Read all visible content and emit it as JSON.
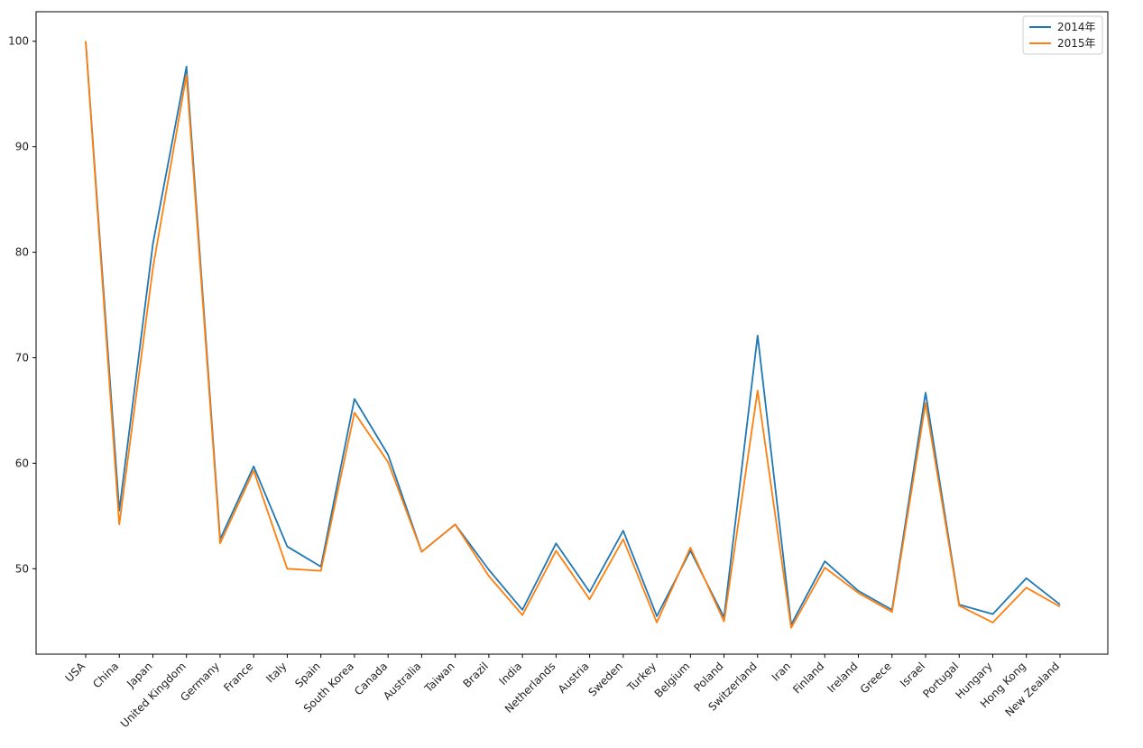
{
  "chart_data": {
    "type": "line",
    "categories": [
      "USA",
      "China",
      "Japan",
      "United Kingdom",
      "Germany",
      "France",
      "Italy",
      "Spain",
      "South Korea",
      "Canada",
      "Australia",
      "Taiwan",
      "Brazil",
      "India",
      "Netherlands",
      "Austria",
      "Sweden",
      "Turkey",
      "Belgium",
      "Poland",
      "Switzerland",
      "Iran",
      "Finland",
      "Ireland",
      "Greece",
      "Israel",
      "Portugal",
      "Hungary",
      "Hong Kong",
      "New Zealand"
    ],
    "series": [
      {
        "name": "2014年",
        "color": "#1f77b4",
        "values": [
          100,
          55.5,
          80.8,
          97.6,
          52.8,
          59.7,
          52.1,
          50.2,
          66.1,
          60.8,
          51.6,
          54.2,
          49.9,
          46.1,
          52.4,
          47.8,
          53.6,
          45.5,
          51.7,
          45.4,
          72.1,
          44.7,
          50.7,
          47.9,
          46.1,
          66.7,
          46.6,
          45.7,
          49.1,
          46.6
        ]
      },
      {
        "name": "2015年",
        "color": "#ff7f0e",
        "values": [
          100,
          54.2,
          78.5,
          96.8,
          52.4,
          59.3,
          50.0,
          49.8,
          64.8,
          60.1,
          51.6,
          54.2,
          49.3,
          45.6,
          51.7,
          47.1,
          52.8,
          44.9,
          52.0,
          45.0,
          66.9,
          44.4,
          50.1,
          47.7,
          45.9,
          65.7,
          46.5,
          44.9,
          48.2,
          46.4
        ]
      }
    ],
    "y_ticks": [
      50,
      60,
      70,
      80,
      90,
      100
    ],
    "ylim": [
      41.9,
      102.8
    ],
    "grid": false,
    "legend_position": "top-right",
    "xlabel": "",
    "ylabel": "",
    "title": ""
  }
}
